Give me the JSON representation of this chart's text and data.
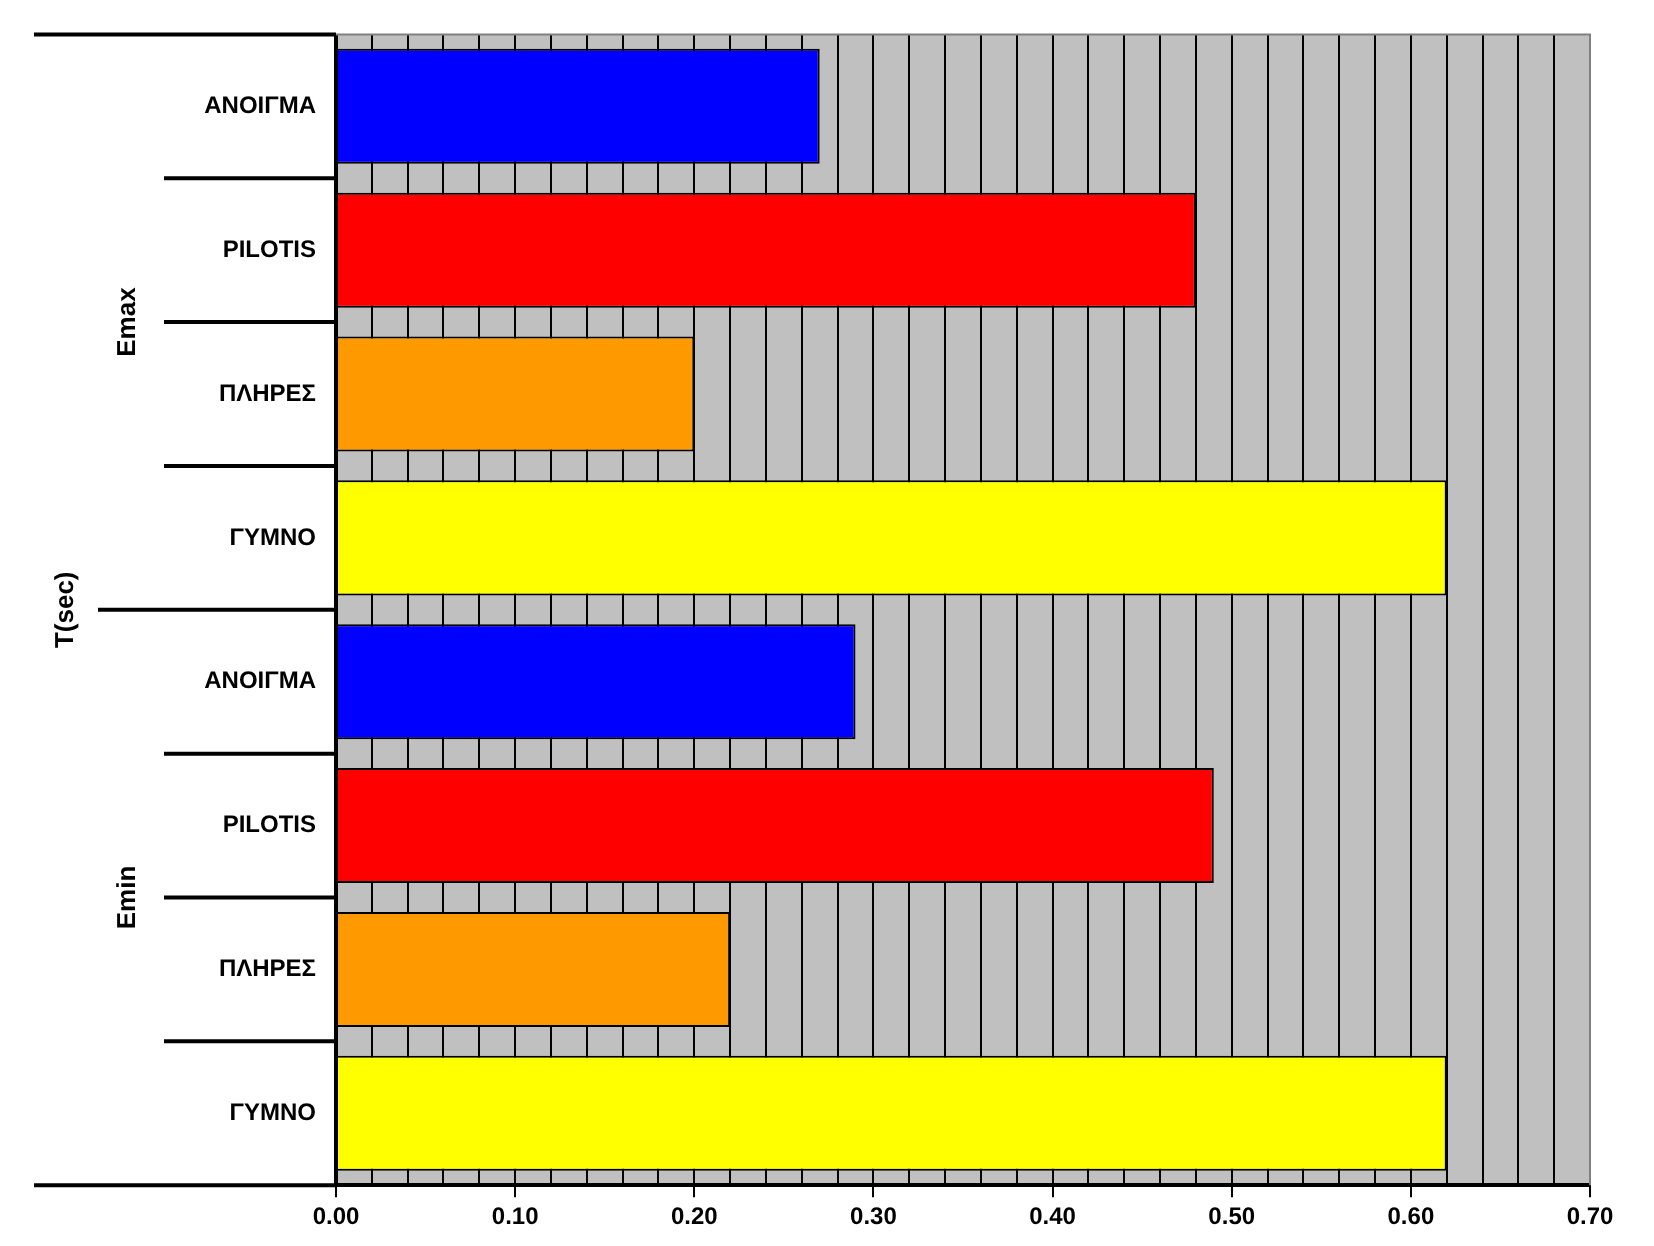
{
  "chart_data": {
    "type": "bar",
    "orientation": "horizontal",
    "ylabel": "T(sec)",
    "categories": [
      "ΑΝΟΙΓΜΑ",
      "PILOTIS",
      "ΠΛΗΡΕΣ",
      "ΓΥΜΝΟ",
      "ΑΝΟΙΓΜΑ",
      "PILOTIS",
      "ΠΛΗΡΕΣ",
      "ΓΥΜΝΟ"
    ],
    "values": [
      0.27,
      0.48,
      0.2,
      0.62,
      0.29,
      0.49,
      0.22,
      0.62
    ],
    "colors": [
      "#0000ff",
      "#ff0000",
      "#ff9900",
      "#ffff00",
      "#0000ff",
      "#ff0000",
      "#ff9900",
      "#ffff00"
    ],
    "annotations": [
      "Emax",
      "Emin"
    ],
    "xlim": [
      0,
      0.7
    ],
    "xticks": [
      {
        "value": 0,
        "label": "0.00"
      },
      {
        "value": 0.02,
        "label": null
      },
      {
        "value": 0.04,
        "label": null
      },
      {
        "value": 0.06,
        "label": null
      },
      {
        "value": 0.08,
        "label": null
      },
      {
        "value": 0.1,
        "label": "0.10"
      },
      {
        "value": 0.12,
        "label": null
      },
      {
        "value": 0.14,
        "label": null
      },
      {
        "value": 0.16,
        "label": null
      },
      {
        "value": 0.18,
        "label": null
      },
      {
        "value": 0.2,
        "label": "0.20"
      },
      {
        "value": 0.22,
        "label": null
      },
      {
        "value": 0.24,
        "label": null
      },
      {
        "value": 0.26,
        "label": null
      },
      {
        "value": 0.28,
        "label": null
      },
      {
        "value": 0.3,
        "label": "0.30"
      },
      {
        "value": 0.32,
        "label": null
      },
      {
        "value": 0.34,
        "label": null
      },
      {
        "value": 0.36,
        "label": null
      },
      {
        "value": 0.38,
        "label": null
      },
      {
        "value": 0.4,
        "label": "0.40"
      },
      {
        "value": 0.42,
        "label": null
      },
      {
        "value": 0.44,
        "label": null
      },
      {
        "value": 0.46,
        "label": null
      },
      {
        "value": 0.48,
        "label": null
      },
      {
        "value": 0.5,
        "label": "0.50"
      },
      {
        "value": 0.52,
        "label": null
      },
      {
        "value": 0.54,
        "label": null
      },
      {
        "value": 0.56,
        "label": null
      },
      {
        "value": 0.58,
        "label": null
      },
      {
        "value": 0.6,
        "label": "0.60"
      },
      {
        "value": 0.62,
        "label": null
      },
      {
        "value": 0.64,
        "label": null
      },
      {
        "value": 0.66,
        "label": null
      },
      {
        "value": 0.68,
        "label": null
      },
      {
        "value": 0.7,
        "label": "0.70"
      }
    ],
    "grid": "x",
    "legend": false
  }
}
